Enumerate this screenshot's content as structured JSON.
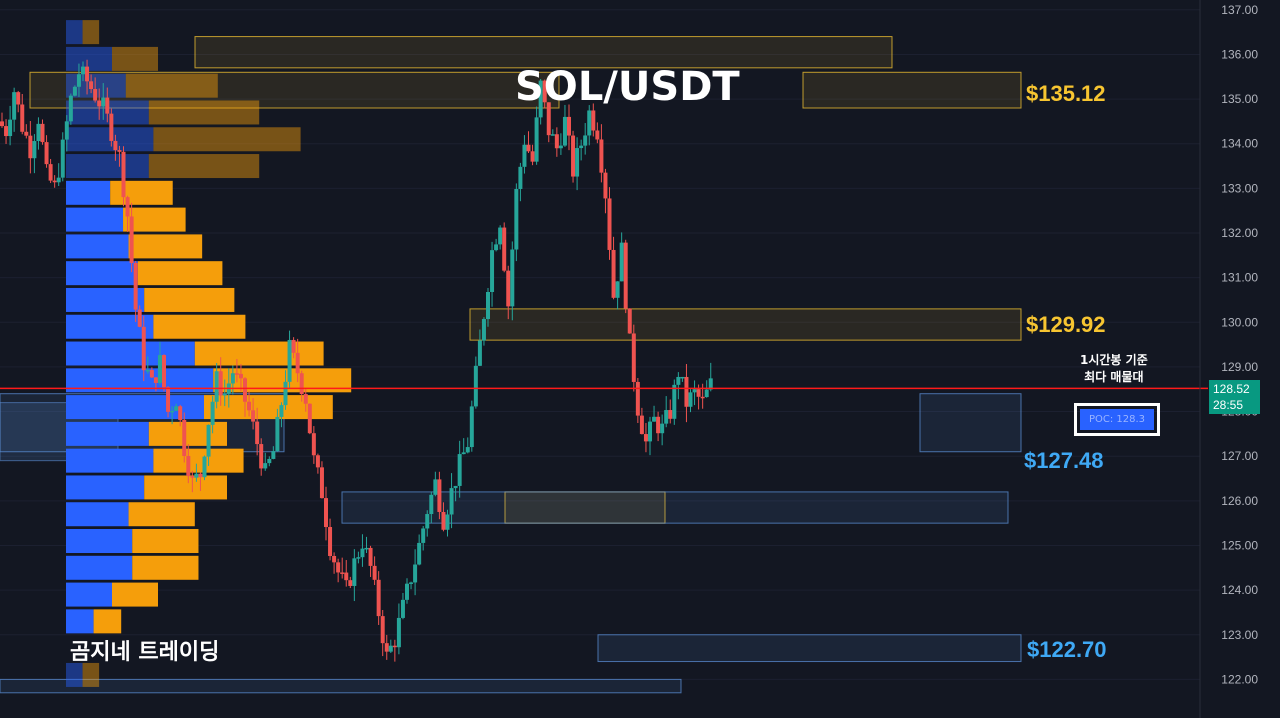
{
  "title": "SOL/USDT",
  "brand": "곰지네 트레이딩",
  "note": {
    "line1": "1시간봉 기준",
    "line2": "최다 매물대"
  },
  "poc_label": "POC: 128.3",
  "current_price": {
    "price": "128.52",
    "countdown": "28:55"
  },
  "colors": {
    "background": "#131722",
    "bull": "#26a69a",
    "bear": "#ef5350",
    "volume_buy": "#2962ff",
    "volume_sell": "#f59e0b",
    "resistance": "#f7c531",
    "support": "#5b8fd6",
    "current_line": "#ff1a1a",
    "price_tag": "#089981"
  },
  "levels": [
    {
      "label": "$135.12",
      "price": 135.12,
      "type": "resistance"
    },
    {
      "label": "$129.92",
      "price": 129.92,
      "type": "resistance"
    },
    {
      "label": "$127.48",
      "price": 127.48,
      "type": "support"
    },
    {
      "label": "$122.70",
      "price": 122.7,
      "type": "support"
    }
  ],
  "chart_data": {
    "type": "candlestick",
    "title": "SOL/USDT",
    "ylim": [
      121.7,
      137.2
    ],
    "y_ticks": [
      "137.00",
      "136.00",
      "135.00",
      "134.00",
      "133.00",
      "132.00",
      "131.00",
      "130.00",
      "129.00",
      "128.00",
      "127.00",
      "126.00",
      "125.00",
      "124.00",
      "123.00",
      "122.00"
    ],
    "current_price": 128.52,
    "poc": 128.3,
    "zones": [
      {
        "type": "resistance",
        "from": 135.7,
        "to": 136.4
      },
      {
        "type": "resistance",
        "from": 134.8,
        "to": 135.6
      },
      {
        "type": "resistance",
        "from": 134.8,
        "to": 135.6
      },
      {
        "type": "resistance",
        "from": 129.6,
        "to": 130.3
      },
      {
        "type": "resistance",
        "from": 125.5,
        "to": 126.2
      },
      {
        "type": "support",
        "from": 127.1,
        "to": 128.4
      },
      {
        "type": "support",
        "from": 125.5,
        "to": 126.2
      },
      {
        "type": "support",
        "from": 122.4,
        "to": 123.0
      },
      {
        "type": "support",
        "from": 127.1,
        "to": 128.4
      },
      {
        "type": "support",
        "from": 121.7,
        "to": 122.0
      }
    ],
    "volume_profile": [
      {
        "price": 136.5,
        "buy": 0.18,
        "sell": 0.18
      },
      {
        "price": 135.9,
        "buy": 0.5,
        "sell": 0.5
      },
      {
        "price": 135.3,
        "buy": 0.65,
        "sell": 1.0
      },
      {
        "price": 134.7,
        "buy": 0.9,
        "sell": 1.2
      },
      {
        "price": 134.1,
        "buy": 0.95,
        "sell": 1.6
      },
      {
        "price": 133.5,
        "buy": 0.9,
        "sell": 1.2
      },
      {
        "price": 132.9,
        "buy": 0.48,
        "sell": 0.68
      },
      {
        "price": 132.3,
        "buy": 0.62,
        "sell": 0.68
      },
      {
        "price": 131.7,
        "buy": 0.68,
        "sell": 0.8
      },
      {
        "price": 131.1,
        "buy": 0.78,
        "sell": 0.92
      },
      {
        "price": 130.5,
        "buy": 0.85,
        "sell": 0.98
      },
      {
        "price": 129.9,
        "buy": 0.95,
        "sell": 1.0
      },
      {
        "price": 129.3,
        "buy": 1.4,
        "sell": 1.4
      },
      {
        "price": 128.7,
        "buy": 1.6,
        "sell": 1.5
      },
      {
        "price": 128.1,
        "buy": 1.5,
        "sell": 1.4
      },
      {
        "price": 127.5,
        "buy": 0.9,
        "sell": 0.85
      },
      {
        "price": 126.9,
        "buy": 0.95,
        "sell": 0.98
      },
      {
        "price": 126.3,
        "buy": 0.85,
        "sell": 0.9
      },
      {
        "price": 125.7,
        "buy": 0.68,
        "sell": 0.72
      },
      {
        "price": 125.1,
        "buy": 0.72,
        "sell": 0.72
      },
      {
        "price": 124.5,
        "buy": 0.72,
        "sell": 0.72
      },
      {
        "price": 123.9,
        "buy": 0.5,
        "sell": 0.5
      },
      {
        "price": 123.3,
        "buy": 0.3,
        "sell": 0.3
      },
      {
        "price": 122.1,
        "buy": 0.18,
        "sell": 0.18
      }
    ],
    "series_path": [
      [
        0,
        134.5
      ],
      [
        3,
        134.3
      ],
      [
        6,
        135.2
      ],
      [
        9,
        134.4
      ],
      [
        12,
        133.9
      ],
      [
        15,
        134.6
      ],
      [
        18,
        133.3
      ],
      [
        21,
        133.0
      ],
      [
        24,
        133.9
      ],
      [
        27,
        135.0
      ],
      [
        30,
        135.6
      ],
      [
        33,
        135.4
      ],
      [
        36,
        135.1
      ],
      [
        39,
        134.8
      ],
      [
        42,
        134.3
      ],
      [
        45,
        133.7
      ],
      [
        48,
        132.4
      ],
      [
        51,
        130.3
      ],
      [
        54,
        129.1
      ],
      [
        57,
        128.6
      ],
      [
        60,
        129.1
      ],
      [
        63,
        128.0
      ],
      [
        66,
        128.3
      ],
      [
        69,
        127.2
      ],
      [
        72,
        126.4
      ],
      [
        75,
        126.6
      ],
      [
        78,
        127.8
      ],
      [
        81,
        128.7
      ],
      [
        84,
        128.4
      ],
      [
        87,
        128.9
      ],
      [
        90,
        128.5
      ],
      [
        93,
        128.0
      ],
      [
        96,
        127.3
      ],
      [
        99,
        126.6
      ],
      [
        102,
        127.1
      ],
      [
        105,
        128.2
      ],
      [
        108,
        129.4
      ],
      [
        111,
        128.9
      ],
      [
        114,
        128.3
      ],
      [
        117,
        126.9
      ],
      [
        120,
        126.2
      ],
      [
        123,
        125.0
      ],
      [
        126,
        124.4
      ],
      [
        129,
        124.0
      ],
      [
        132,
        124.6
      ],
      [
        135,
        125.1
      ],
      [
        138,
        124.5
      ],
      [
        141,
        123.5
      ],
      [
        144,
        122.5
      ],
      [
        147,
        122.9
      ],
      [
        150,
        123.6
      ],
      [
        153,
        124.3
      ],
      [
        156,
        125.0
      ],
      [
        159,
        125.8
      ],
      [
        162,
        126.4
      ],
      [
        165,
        125.6
      ],
      [
        168,
        126.2
      ],
      [
        171,
        126.8
      ],
      [
        174,
        127.3
      ],
      [
        177,
        128.8
      ],
      [
        180,
        130.2
      ],
      [
        183,
        131.6
      ],
      [
        186,
        132.3
      ],
      [
        189,
        130.4
      ],
      [
        192,
        132.9
      ],
      [
        195,
        134.1
      ],
      [
        198,
        133.6
      ],
      [
        201,
        135.3
      ],
      [
        204,
        134.3
      ],
      [
        207,
        133.9
      ],
      [
        210,
        134.5
      ],
      [
        213,
        133.4
      ],
      [
        216,
        134.0
      ],
      [
        219,
        134.7
      ],
      [
        222,
        134.3
      ],
      [
        225,
        132.9
      ],
      [
        228,
        130.6
      ],
      [
        231,
        131.6
      ],
      [
        234,
        129.5
      ],
      [
        237,
        128.1
      ],
      [
        240,
        127.3
      ],
      [
        243,
        127.8
      ],
      [
        246,
        127.6
      ],
      [
        249,
        128.0
      ],
      [
        252,
        128.9
      ],
      [
        255,
        128.2
      ],
      [
        258,
        128.4
      ],
      [
        261,
        128.2
      ],
      [
        264,
        128.6
      ]
    ]
  }
}
